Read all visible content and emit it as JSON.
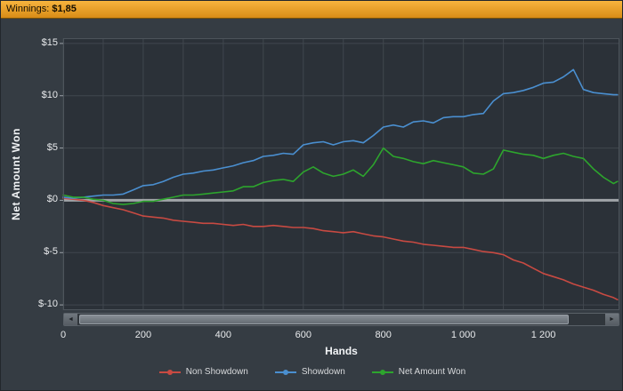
{
  "titlebar": {
    "label": "Winnings:",
    "value": "$1,85"
  },
  "scrollbar": {
    "left_arrow": "◄",
    "right_arrow": "►"
  },
  "colors": {
    "window_bg": "#353c43",
    "plot_bg": "#2b3138",
    "grid": "#40474e",
    "zero_line": "#a0a4a8",
    "axis_text": "#9aa0a6",
    "plot_border": "#4d545b",
    "titlebar_gradient_top": "#f7b43e",
    "titlebar_gradient_bottom": "#d88c17"
  },
  "chart_data": {
    "type": "line",
    "title": "Winnings: $1,85",
    "xlabel": "Hands",
    "ylabel": "Net Amount Won",
    "xlim": [
      0,
      1390
    ],
    "ylim": [
      -10.5,
      15.5
    ],
    "x_grid_step": 100,
    "y_grid_step": 5,
    "grid": true,
    "legend_position": "bottom",
    "x_ticks": [
      {
        "value": 0,
        "label": "0"
      },
      {
        "value": 200,
        "label": "200"
      },
      {
        "value": 400,
        "label": "400"
      },
      {
        "value": 600,
        "label": "600"
      },
      {
        "value": 800,
        "label": "800"
      },
      {
        "value": 1000,
        "label": "1 000"
      },
      {
        "value": 1200,
        "label": "1 200"
      }
    ],
    "y_ticks": [
      {
        "value": 15,
        "label": "$15"
      },
      {
        "value": 10,
        "label": "$10"
      },
      {
        "value": 5,
        "label": "$5"
      },
      {
        "value": 0,
        "label": "$0"
      },
      {
        "value": -5,
        "label": "$-5"
      },
      {
        "value": -10,
        "label": "$-10"
      }
    ],
    "x": [
      0,
      25,
      50,
      75,
      100,
      125,
      150,
      175,
      200,
      225,
      250,
      275,
      300,
      325,
      350,
      375,
      400,
      425,
      450,
      475,
      500,
      525,
      550,
      575,
      600,
      625,
      650,
      675,
      700,
      725,
      750,
      775,
      800,
      825,
      850,
      875,
      900,
      925,
      950,
      975,
      1000,
      1025,
      1050,
      1075,
      1100,
      1125,
      1150,
      1175,
      1200,
      1225,
      1250,
      1275,
      1300,
      1325,
      1350,
      1375,
      1385
    ],
    "series": [
      {
        "name": "Non Showdown",
        "color": "#c84a42",
        "y": [
          0.2,
          0.1,
          0.0,
          -0.2,
          -0.5,
          -0.7,
          -0.9,
          -1.2,
          -1.5,
          -1.6,
          -1.7,
          -1.9,
          -2.0,
          -2.1,
          -2.2,
          -2.2,
          -2.3,
          -2.4,
          -2.3,
          -2.5,
          -2.5,
          -2.4,
          -2.5,
          -2.6,
          -2.6,
          -2.7,
          -2.9,
          -3.0,
          -3.1,
          -3.0,
          -3.2,
          -3.4,
          -3.5,
          -3.7,
          -3.9,
          -4.0,
          -4.2,
          -4.3,
          -4.4,
          -4.5,
          -4.5,
          -4.7,
          -4.9,
          -5.0,
          -5.2,
          -5.7,
          -6.0,
          -6.5,
          -7.0,
          -7.3,
          -7.6,
          -8.0,
          -8.3,
          -8.6,
          -9.0,
          -9.3,
          -9.5
        ]
      },
      {
        "name": "Showdown",
        "color": "#4a8fd0",
        "y": [
          0.3,
          0.2,
          0.3,
          0.4,
          0.5,
          0.5,
          0.6,
          1.0,
          1.4,
          1.5,
          1.8,
          2.2,
          2.5,
          2.6,
          2.8,
          2.9,
          3.1,
          3.3,
          3.6,
          3.8,
          4.2,
          4.3,
          4.5,
          4.4,
          5.3,
          5.5,
          5.6,
          5.3,
          5.6,
          5.7,
          5.5,
          6.2,
          7.0,
          7.2,
          7.0,
          7.5,
          7.6,
          7.4,
          7.9,
          8.0,
          8.0,
          8.2,
          8.3,
          9.5,
          10.2,
          10.3,
          10.5,
          10.8,
          11.2,
          11.3,
          11.8,
          12.5,
          10.6,
          10.3,
          10.2,
          10.1,
          10.1
        ]
      },
      {
        "name": "Net Amount Won",
        "color": "#2da52d",
        "y": [
          0.5,
          0.3,
          0.3,
          0.1,
          0.0,
          -0.3,
          -0.4,
          -0.3,
          -0.1,
          -0.1,
          0.1,
          0.3,
          0.5,
          0.5,
          0.6,
          0.7,
          0.8,
          0.9,
          1.3,
          1.3,
          1.7,
          1.9,
          2.0,
          1.8,
          2.7,
          3.2,
          2.6,
          2.3,
          2.5,
          2.9,
          2.3,
          3.4,
          5.0,
          4.2,
          4.0,
          3.7,
          3.5,
          3.8,
          3.6,
          3.4,
          3.2,
          2.6,
          2.5,
          3.0,
          4.8,
          4.6,
          4.4,
          4.3,
          4.0,
          4.3,
          4.5,
          4.2,
          4.0,
          3.0,
          2.2,
          1.6,
          1.8
        ]
      }
    ]
  }
}
